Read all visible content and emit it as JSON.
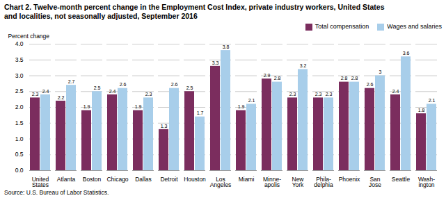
{
  "chart_data": {
    "type": "bar",
    "title": "Chart 2. Twelve-month percent change in the Employment Cost Index, private industry workers, United States",
    "subtitle": "and localities, not seasonally adjusted, September 2016",
    "ylabel": "Percent change",
    "source": "Source: U.S. Bureau of Labor Statistics.",
    "categories": [
      "United\nStates",
      "Atlanta",
      "Boston",
      "Chicago",
      "Dallas",
      "Detroit",
      "Houston",
      "Los\nAngeles",
      "Miami",
      "Minne-\napolis",
      "New\nYork",
      "Phila-\ndelphia",
      "Phoenix",
      "San\nJose",
      "Seattle",
      "Wash-\nington"
    ],
    "series": [
      {
        "name": "Total compensation",
        "color": "#7B2D5E",
        "values": [
          2.3,
          2.2,
          1.9,
          2.4,
          1.9,
          1.3,
          2.5,
          3.3,
          1.9,
          2.9,
          2.3,
          2.3,
          2.8,
          2.6,
          2.4,
          1.8
        ]
      },
      {
        "name": "Wages and salaries",
        "color": "#A8CEEA",
        "values": [
          2.4,
          2.7,
          2.5,
          2.6,
          2.3,
          2.6,
          1.7,
          3.8,
          2.1,
          2.8,
          3.2,
          2.3,
          2.8,
          3.0,
          3.6,
          2.1
        ]
      }
    ],
    "ylim": [
      0,
      4.0
    ],
    "yticks": [
      {
        "value": 0,
        "label": "0.0"
      },
      0.5,
      {
        "value": 1,
        "label": "1.0"
      },
      1.5,
      {
        "value": 2,
        "label": "2.0"
      },
      2.5,
      {
        "value": 3,
        "label": "3.0"
      },
      3.5,
      {
        "value": 4,
        "label": "4.0"
      }
    ],
    "grid": true,
    "legend": "upper right",
    "data_labels": true
  }
}
